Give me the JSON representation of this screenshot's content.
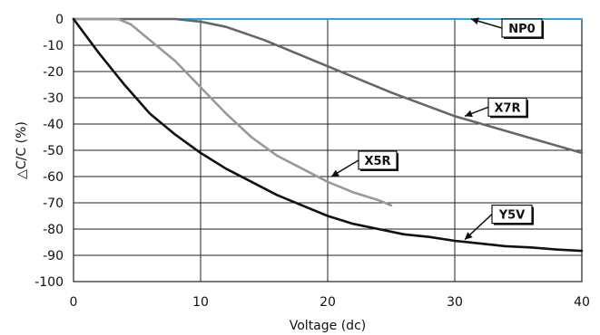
{
  "chart_data": {
    "type": "line",
    "title": "",
    "xlabel": "Voltage (dc)",
    "ylabel": "△C/C (%)",
    "xlim": [
      0,
      40
    ],
    "ylim": [
      -100,
      0
    ],
    "x_ticks": [
      0,
      10,
      20,
      30,
      40
    ],
    "y_ticks": [
      0,
      -10,
      -20,
      -30,
      -40,
      -50,
      -60,
      -70,
      -80,
      -90,
      -100
    ],
    "grid": true,
    "legend": "none (series labelled by callout boxes)",
    "series": [
      {
        "name": "NP0",
        "color": "#2ea6e0",
        "x": [
          0,
          40
        ],
        "y": [
          0,
          0
        ],
        "label_anchor": {
          "x": 31,
          "y": 0
        }
      },
      {
        "name": "X7R",
        "color": "#666666",
        "x": [
          0,
          5,
          8,
          10,
          12,
          15,
          20,
          25,
          30,
          35,
          40
        ],
        "y": [
          0,
          0,
          0,
          -1,
          -3,
          -8,
          -18,
          -28,
          -37,
          -44,
          -51
        ],
        "label_anchor": {
          "x": 30.5,
          "y": -37
        }
      },
      {
        "name": "X5R",
        "color": "#999999",
        "x": [
          0,
          3.5,
          4.5,
          6,
          8,
          10,
          12,
          14,
          16,
          18,
          20,
          22,
          24,
          25
        ],
        "y": [
          0,
          0,
          -2,
          -8,
          -16,
          -26,
          -36,
          -45,
          -52,
          -57,
          -62,
          -66,
          -69,
          -71
        ],
        "label_anchor": {
          "x": 20,
          "y": -60
        }
      },
      {
        "name": "Y5V",
        "color": "#111111",
        "x": [
          0,
          2,
          4,
          6,
          8,
          10,
          12,
          14,
          16,
          18,
          20,
          22,
          24,
          26,
          28,
          30,
          32,
          34,
          36,
          38,
          40
        ],
        "y": [
          0,
          -13,
          -25,
          -36,
          -44,
          -51,
          -57,
          -62,
          -67,
          -71,
          -75,
          -78,
          -80,
          -82,
          -83,
          -84.5,
          -85.5,
          -86.5,
          -87,
          -87.8,
          -88.3
        ],
        "label_anchor": {
          "x": 30.5,
          "y": -84
        }
      }
    ]
  }
}
